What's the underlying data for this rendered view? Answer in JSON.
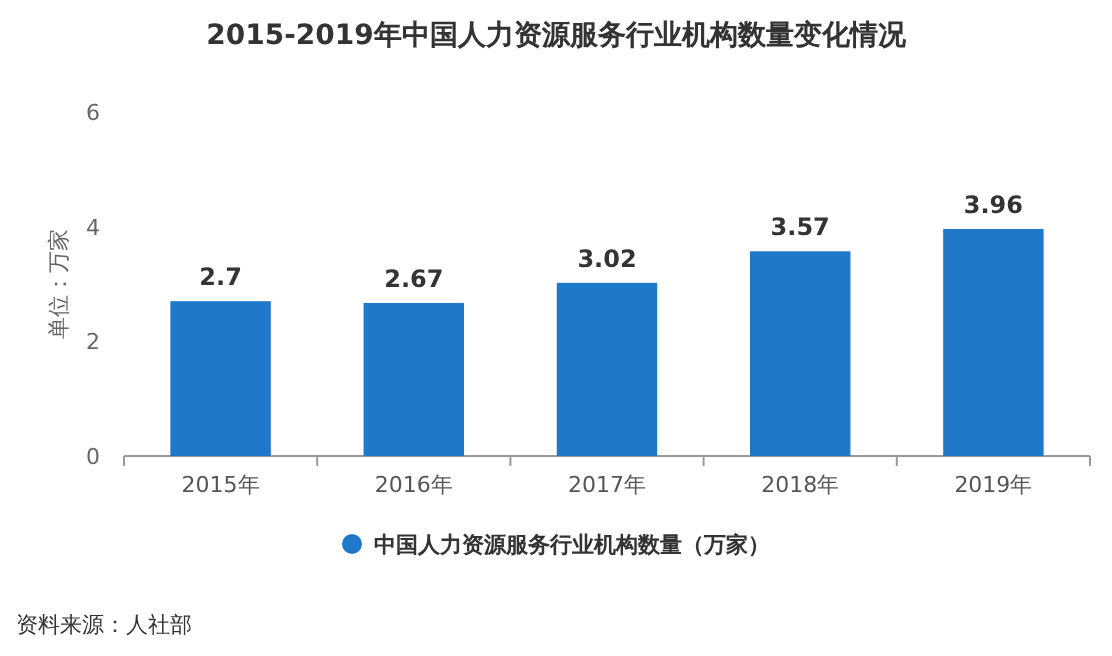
{
  "chart_data": {
    "type": "bar",
    "title": "2015-2019年中国人力资源服务行业机构数量变化情况",
    "ylabel": "单位：万家",
    "categories": [
      "2015年",
      "2016年",
      "2017年",
      "2018年",
      "2019年"
    ],
    "series": [
      {
        "name": "中国人力资源服务行业机构数量（万家）",
        "color": "#1f78c8",
        "values": [
          2.7,
          2.67,
          3.02,
          3.57,
          3.96
        ]
      }
    ],
    "ylim": [
      0,
      6
    ],
    "yticks": [
      0,
      2,
      4,
      6
    ],
    "data_labels": true,
    "legend": "bottom",
    "annotations": [
      "资料来源：人社部"
    ]
  }
}
